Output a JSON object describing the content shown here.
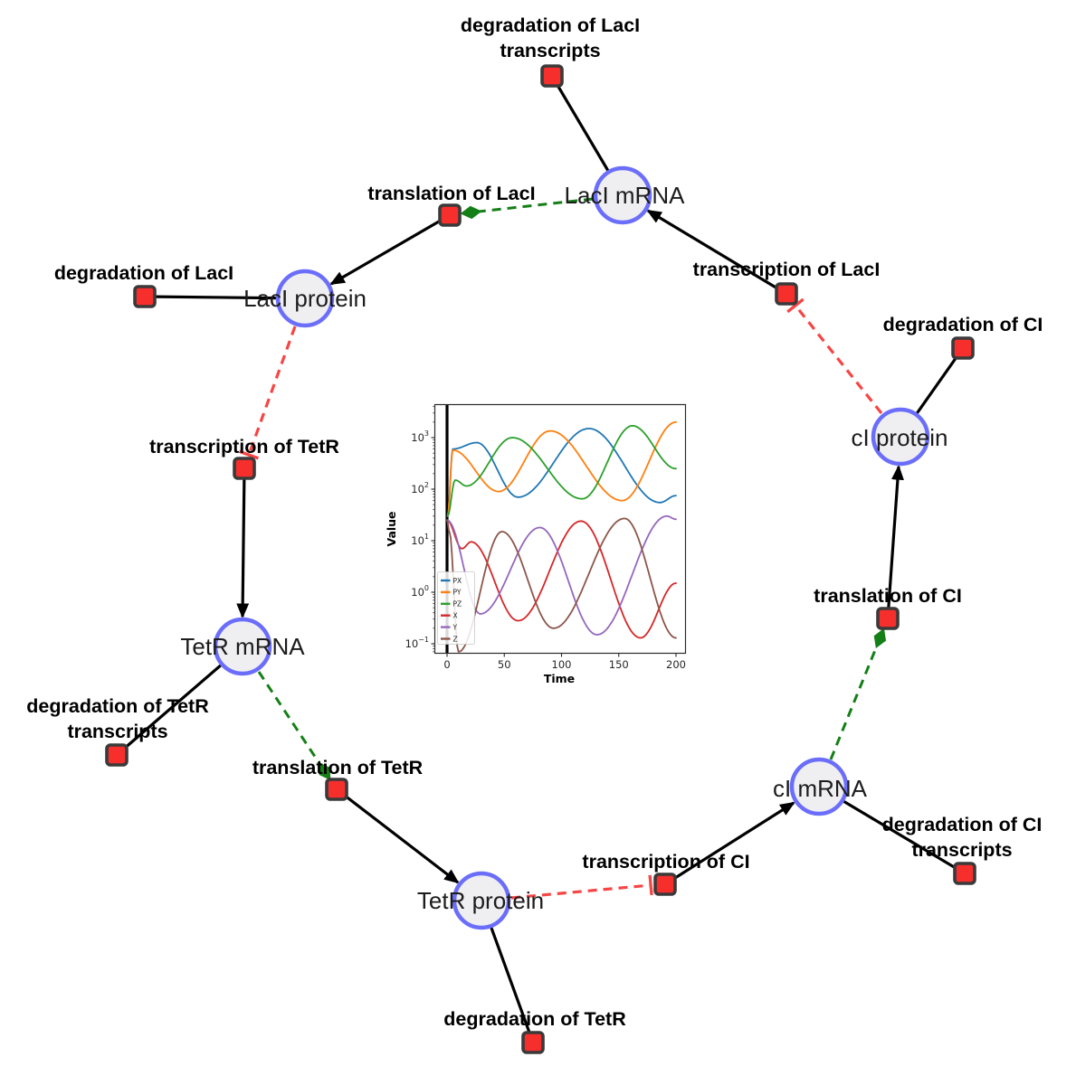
{
  "network": {
    "species": {
      "laci_mrna": {
        "label": "LacI mRNA"
      },
      "laci_protein": {
        "label": "LacI protein"
      },
      "tetr_mrna": {
        "label": "TetR mRNA"
      },
      "tetr_protein": {
        "label": "TetR protein"
      },
      "ci_mrna": {
        "label": "cI mRNA"
      },
      "ci_protein": {
        "label": "cI protein"
      }
    },
    "reactions": {
      "deg_laci_transcripts": {
        "line1": "degradation of LacI",
        "line2": "transcripts"
      },
      "translation_laci": {
        "label": "translation of LacI"
      },
      "deg_laci": {
        "label": "degradation of LacI"
      },
      "transcription_laci": {
        "label": "transcription of LacI"
      },
      "deg_ci": {
        "label": "degradation of CI"
      },
      "transcription_tetr": {
        "label": "transcription of TetR"
      },
      "deg_tetr_transcripts": {
        "line1": "degradation of TetR",
        "line2": "transcripts"
      },
      "translation_tetr": {
        "label": "translation of TetR"
      },
      "deg_tetr": {
        "label": "degradation of TetR"
      },
      "transcription_ci": {
        "label": "transcription of CI"
      },
      "translation_ci": {
        "label": "translation of CI"
      },
      "deg_ci_transcripts": {
        "line1": "degradation of CI",
        "line2": "transcripts"
      }
    },
    "edges": [
      {
        "from": "LacI mRNA",
        "to": "degradation of LacI transcripts",
        "type": "reactant"
      },
      {
        "from": "transcription of LacI",
        "to": "LacI mRNA",
        "type": "product"
      },
      {
        "from": "LacI mRNA",
        "to": "translation of LacI",
        "type": "modifier"
      },
      {
        "from": "translation of LacI",
        "to": "LacI protein",
        "type": "product"
      },
      {
        "from": "LacI protein",
        "to": "degradation of LacI",
        "type": "reactant"
      },
      {
        "from": "LacI protein",
        "to": "transcription of TetR",
        "type": "inhibition"
      },
      {
        "from": "transcription of TetR",
        "to": "TetR mRNA",
        "type": "product"
      },
      {
        "from": "TetR mRNA",
        "to": "degradation of TetR transcripts",
        "type": "reactant"
      },
      {
        "from": "TetR mRNA",
        "to": "translation of TetR",
        "type": "modifier"
      },
      {
        "from": "translation of TetR",
        "to": "TetR protein",
        "type": "product"
      },
      {
        "from": "TetR protein",
        "to": "degradation of TetR",
        "type": "reactant"
      },
      {
        "from": "TetR protein",
        "to": "transcription of CI",
        "type": "inhibition"
      },
      {
        "from": "transcription of CI",
        "to": "cI mRNA",
        "type": "product"
      },
      {
        "from": "cI mRNA",
        "to": "degradation of CI transcripts",
        "type": "reactant"
      },
      {
        "from": "cI mRNA",
        "to": "translation of CI",
        "type": "modifier"
      },
      {
        "from": "translation of CI",
        "to": "cI protein",
        "type": "product"
      },
      {
        "from": "cI protein",
        "to": "degradation of CI",
        "type": "reactant"
      },
      {
        "from": "cI protein",
        "to": "transcription of LacI",
        "type": "inhibition"
      }
    ],
    "styles": {
      "species_fill": "#efeff2",
      "species_border": "#6b6efa",
      "reaction_fill": "#f72f2c",
      "reaction_border": "#3a3a3a",
      "edge_solid": "#000000",
      "edge_modifier": "#157f17",
      "edge_inhibition": "#f64545",
      "background": "#ffffff"
    }
  },
  "chart_data": {
    "type": "line",
    "title": "",
    "x_axis": {
      "label": "Time",
      "ticks": [
        0,
        50,
        100,
        150,
        200
      ],
      "range": [
        -11,
        208
      ]
    },
    "y_axis": {
      "label": "Value",
      "scale": "log",
      "tick_exponents": [
        -1,
        0,
        1,
        2,
        3
      ],
      "range_exponents": [
        -1.19,
        3.65
      ]
    },
    "grid": false,
    "legend_position": "lower left",
    "initial_spike": {
      "x": 0,
      "color": "#000000"
    },
    "series": [
      {
        "name": "PX",
        "color": "#1f77b4",
        "keypoints": [
          [
            0.5,
            30
          ],
          [
            5,
            600
          ],
          [
            26,
            800
          ],
          [
            62,
            70
          ],
          [
            124,
            1500
          ],
          [
            186,
            55
          ],
          [
            200,
            75
          ]
        ]
      },
      {
        "name": "PY",
        "color": "#ff7f0e",
        "keypoints": [
          [
            0.5,
            30
          ],
          [
            5,
            570
          ],
          [
            45,
            90
          ],
          [
            90,
            1350
          ],
          [
            153,
            60
          ],
          [
            200,
            2000
          ]
        ]
      },
      {
        "name": "PZ",
        "color": "#2ca02c",
        "keypoints": [
          [
            0.5,
            30
          ],
          [
            7,
            150
          ],
          [
            17,
            115
          ],
          [
            57,
            1000
          ],
          [
            118,
            65
          ],
          [
            162,
            1700
          ],
          [
            200,
            250
          ]
        ]
      },
      {
        "name": "X",
        "color": "#d62728",
        "keypoints": [
          [
            0,
            25
          ],
          [
            13,
            7
          ],
          [
            21,
            9.5
          ],
          [
            62,
            0.28
          ],
          [
            117,
            24
          ],
          [
            169,
            0.13
          ],
          [
            200,
            1.5
          ]
        ]
      },
      {
        "name": "Y",
        "color": "#9467bd",
        "keypoints": [
          [
            0,
            25
          ],
          [
            29,
            0.38
          ],
          [
            81,
            18
          ],
          [
            131,
            0.15
          ],
          [
            192,
            30
          ],
          [
            200,
            26
          ]
        ]
      },
      {
        "name": "Z",
        "color": "#8c564b",
        "keypoints": [
          [
            0,
            25
          ],
          [
            2,
            15
          ],
          [
            10,
            0.07
          ],
          [
            48,
            15
          ],
          [
            93,
            0.2
          ],
          [
            155,
            27
          ],
          [
            200,
            0.13
          ]
        ]
      }
    ]
  }
}
